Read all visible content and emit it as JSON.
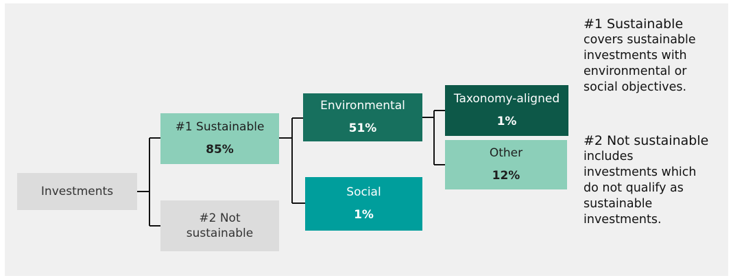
{
  "tree": {
    "root": {
      "label": "Investments"
    },
    "sustainable": {
      "label": "#1 Sustainable",
      "value": "85%"
    },
    "not_sustainable": {
      "label": "#2 Not sustainable"
    },
    "environmental": {
      "label": "Environmental",
      "value": "51%"
    },
    "social": {
      "label": "Social",
      "value": "1%"
    },
    "taxonomy_aligned": {
      "label": "Taxonomy-aligned",
      "value": "1%"
    },
    "other": {
      "label": "Other",
      "value": "12%"
    }
  },
  "legend": {
    "sustainable": {
      "title": "#1 Sustainable",
      "text": "covers sustainable investments with environmental or social objectives."
    },
    "not_sustainable": {
      "title": "#2 Not sustainable",
      "text": "includes investments which do not qualify as sustainable investments."
    }
  },
  "colors": {
    "panel_bg": "#f0f0f0",
    "grey_box": "#dcdcdc",
    "light_green": "#8ccfb9",
    "environmental": "#17705e",
    "social": "#009e9c",
    "taxonomy": "#0d5848",
    "connector": "#111111"
  }
}
